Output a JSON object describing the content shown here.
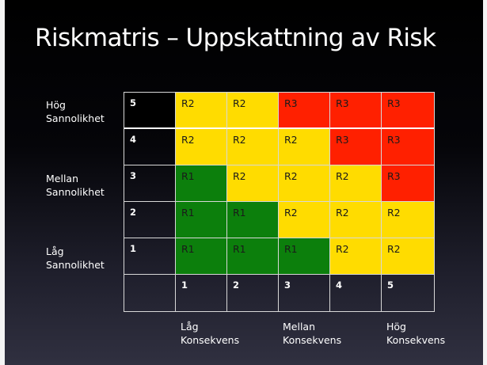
{
  "title": "Riskmatris – Uppskattning av Risk",
  "y_labels": {
    "high": [
      "Hög",
      "Sannolikhet"
    ],
    "mid": [
      "Mellan",
      "Sannolikhet"
    ],
    "low": [
      "Låg",
      "Sannolikhet"
    ]
  },
  "x_labels": {
    "low": [
      "Låg",
      "Konsekvens"
    ],
    "mid": [
      "Mellan",
      "Konsekvens"
    ],
    "high": [
      "Hög",
      "Konsekvens"
    ]
  },
  "colors": {
    "R1": "#0c7f0c",
    "R2": "#ffdc00",
    "R3": "#ff2000"
  },
  "matrix": {
    "probability_levels": [
      "5",
      "4",
      "3",
      "2",
      "1"
    ],
    "consequence_levels": [
      "1",
      "2",
      "3",
      "4",
      "5"
    ],
    "rows": [
      [
        "R2",
        "R2",
        "R3",
        "R3",
        "R3"
      ],
      [
        "R2",
        "R2",
        "R2",
        "R3",
        "R3"
      ],
      [
        "R1",
        "R2",
        "R2",
        "R2",
        "R3"
      ],
      [
        "R1",
        "R1",
        "R2",
        "R2",
        "R2"
      ],
      [
        "R1",
        "R1",
        "R1",
        "R2",
        "R2"
      ]
    ]
  }
}
